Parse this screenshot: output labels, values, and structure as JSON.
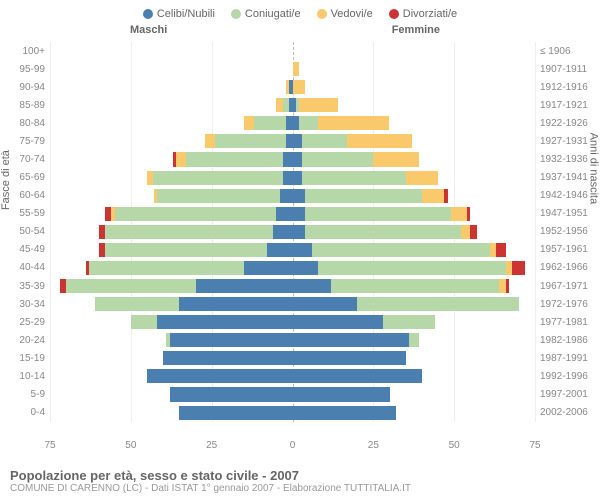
{
  "legend": [
    {
      "label": "Celibi/Nubili",
      "color": "#4a7fb0"
    },
    {
      "label": "Coniugati/e",
      "color": "#b6d7a8"
    },
    {
      "label": "Vedovi/e",
      "color": "#f9c96b"
    },
    {
      "label": "Divorziati/e",
      "color": "#cc3333"
    }
  ],
  "gender_left": "Maschi",
  "gender_right": "Femmine",
  "axis_left": "Fasce di età",
  "axis_right": "Anni di nascita",
  "x_axis": {
    "max": 75,
    "ticks": [
      75,
      50,
      25,
      0,
      25,
      50,
      75
    ]
  },
  "colors": {
    "celibi": "#4a7fb0",
    "coniugati": "#b6d7a8",
    "vedovi": "#f9c96b",
    "divorziati": "#cc3333",
    "grid": "#eee",
    "center": "#bbb"
  },
  "rows": [
    {
      "age": "100+",
      "year": "≤ 1906",
      "m": {
        "c": 0,
        "co": 0,
        "v": 0,
        "d": 0
      },
      "f": {
        "c": 0,
        "co": 0,
        "v": 0,
        "d": 0
      }
    },
    {
      "age": "95-99",
      "year": "1907-1911",
      "m": {
        "c": 0,
        "co": 0,
        "v": 0,
        "d": 0
      },
      "f": {
        "c": 0,
        "co": 0,
        "v": 2,
        "d": 0
      }
    },
    {
      "age": "90-94",
      "year": "1912-1916",
      "m": {
        "c": 1,
        "co": 0,
        "v": 1,
        "d": 0
      },
      "f": {
        "c": 0,
        "co": 0,
        "v": 4,
        "d": 0
      }
    },
    {
      "age": "85-89",
      "year": "1917-1921",
      "m": {
        "c": 1,
        "co": 2,
        "v": 2,
        "d": 0
      },
      "f": {
        "c": 1,
        "co": 1,
        "v": 12,
        "d": 0
      }
    },
    {
      "age": "80-84",
      "year": "1922-1926",
      "m": {
        "c": 2,
        "co": 10,
        "v": 3,
        "d": 0
      },
      "f": {
        "c": 2,
        "co": 6,
        "v": 22,
        "d": 0
      }
    },
    {
      "age": "75-79",
      "year": "1927-1931",
      "m": {
        "c": 2,
        "co": 22,
        "v": 3,
        "d": 0
      },
      "f": {
        "c": 3,
        "co": 14,
        "v": 20,
        "d": 0
      }
    },
    {
      "age": "70-74",
      "year": "1932-1936",
      "m": {
        "c": 3,
        "co": 30,
        "v": 3,
        "d": 1
      },
      "f": {
        "c": 3,
        "co": 22,
        "v": 14,
        "d": 0
      }
    },
    {
      "age": "65-69",
      "year": "1937-1941",
      "m": {
        "c": 3,
        "co": 40,
        "v": 2,
        "d": 0
      },
      "f": {
        "c": 3,
        "co": 32,
        "v": 10,
        "d": 0
      }
    },
    {
      "age": "60-64",
      "year": "1942-1946",
      "m": {
        "c": 4,
        "co": 38,
        "v": 1,
        "d": 0
      },
      "f": {
        "c": 4,
        "co": 36,
        "v": 7,
        "d": 1
      }
    },
    {
      "age": "55-59",
      "year": "1947-1951",
      "m": {
        "c": 5,
        "co": 50,
        "v": 1,
        "d": 2
      },
      "f": {
        "c": 4,
        "co": 45,
        "v": 5,
        "d": 1
      }
    },
    {
      "age": "50-54",
      "year": "1952-1956",
      "m": {
        "c": 6,
        "co": 52,
        "v": 0,
        "d": 2
      },
      "f": {
        "c": 4,
        "co": 48,
        "v": 3,
        "d": 2
      }
    },
    {
      "age": "45-49",
      "year": "1957-1961",
      "m": {
        "c": 8,
        "co": 50,
        "v": 0,
        "d": 2
      },
      "f": {
        "c": 6,
        "co": 55,
        "v": 2,
        "d": 3
      }
    },
    {
      "age": "40-44",
      "year": "1962-1966",
      "m": {
        "c": 15,
        "co": 48,
        "v": 0,
        "d": 1
      },
      "f": {
        "c": 8,
        "co": 58,
        "v": 2,
        "d": 4
      }
    },
    {
      "age": "35-39",
      "year": "1967-1971",
      "m": {
        "c": 30,
        "co": 40,
        "v": 0,
        "d": 2
      },
      "f": {
        "c": 12,
        "co": 52,
        "v": 2,
        "d": 1
      }
    },
    {
      "age": "30-34",
      "year": "1972-1976",
      "m": {
        "c": 35,
        "co": 26,
        "v": 0,
        "d": 0
      },
      "f": {
        "c": 20,
        "co": 50,
        "v": 0,
        "d": 0
      }
    },
    {
      "age": "25-29",
      "year": "1977-1981",
      "m": {
        "c": 42,
        "co": 8,
        "v": 0,
        "d": 0
      },
      "f": {
        "c": 28,
        "co": 16,
        "v": 0,
        "d": 0
      }
    },
    {
      "age": "20-24",
      "year": "1982-1986",
      "m": {
        "c": 38,
        "co": 1,
        "v": 0,
        "d": 0
      },
      "f": {
        "c": 36,
        "co": 3,
        "v": 0,
        "d": 0
      }
    },
    {
      "age": "15-19",
      "year": "1987-1991",
      "m": {
        "c": 40,
        "co": 0,
        "v": 0,
        "d": 0
      },
      "f": {
        "c": 35,
        "co": 0,
        "v": 0,
        "d": 0
      }
    },
    {
      "age": "10-14",
      "year": "1992-1996",
      "m": {
        "c": 45,
        "co": 0,
        "v": 0,
        "d": 0
      },
      "f": {
        "c": 40,
        "co": 0,
        "v": 0,
        "d": 0
      }
    },
    {
      "age": "5-9",
      "year": "1997-2001",
      "m": {
        "c": 38,
        "co": 0,
        "v": 0,
        "d": 0
      },
      "f": {
        "c": 30,
        "co": 0,
        "v": 0,
        "d": 0
      }
    },
    {
      "age": "0-4",
      "year": "2002-2006",
      "m": {
        "c": 35,
        "co": 0,
        "v": 0,
        "d": 0
      },
      "f": {
        "c": 32,
        "co": 0,
        "v": 0,
        "d": 0
      }
    }
  ],
  "footer_title": "Popolazione per età, sesso e stato civile - 2007",
  "footer_sub": "COMUNE DI CARENNO (LC) - Dati ISTAT 1° gennaio 2007 - Elaborazione TUTTITALIA.IT"
}
